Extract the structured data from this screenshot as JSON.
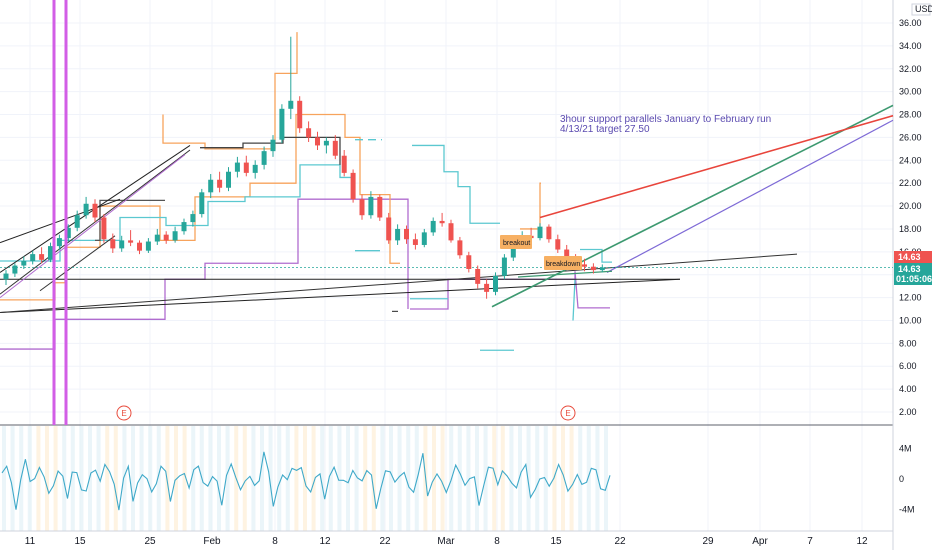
{
  "currency": "USD",
  "annotation": {
    "line1": "3hour support parallels January to February run",
    "line2": "4/13/21 target 27.50"
  },
  "labels": {
    "breakout": "breakout",
    "breakdown": "breakdown"
  },
  "earnings_marker": "E",
  "last_price": "14.63",
  "last_price_prev": "14.63",
  "countdown": "01:05:06",
  "colors": {
    "up": "#26a69a",
    "down": "#ef5350",
    "orange": "#f7a35c",
    "teal": "#5bc8d0",
    "purple": "#b06ccf",
    "magenta": "#d25ee6",
    "red_line": "#e8453c",
    "green_line": "#3d9970",
    "violet_line": "#7e6ad6",
    "volume": "#3fa9c9"
  },
  "chart_data": [
    {
      "type": "candlestick",
      "ylim": [
        1,
        38
      ],
      "y_ticks": [
        "36.00",
        "34.00",
        "32.00",
        "30.00",
        "28.00",
        "26.00",
        "24.00",
        "22.00",
        "20.00",
        "18.00",
        "16.00",
        "14.00",
        "12.00",
        "10.00",
        "8.00",
        "6.00",
        "4.00",
        "2.00"
      ],
      "x_ticks": [
        "11",
        "15",
        "25",
        "Feb",
        "8",
        "12",
        "22",
        "Mar",
        "8",
        "15",
        "22",
        "29",
        "Apr",
        "7",
        "12"
      ],
      "series": [
        {
          "note": "daily OHLC approx",
          "points": [
            [
              0,
              13.6,
              14.4,
              13.1,
              14.1
            ],
            [
              1,
              14.1,
              15.0,
              13.8,
              14.8
            ],
            [
              2,
              14.8,
              15.6,
              14.5,
              15.2
            ],
            [
              3,
              15.2,
              16.1,
              14.9,
              15.8
            ],
            [
              4,
              15.8,
              16.4,
              15.0,
              15.3
            ],
            [
              5,
              15.3,
              16.8,
              15.1,
              16.5
            ],
            [
              6,
              16.5,
              17.5,
              16.2,
              17.2
            ],
            [
              7,
              17.2,
              18.4,
              16.9,
              18.1
            ],
            [
              8,
              18.1,
              19.6,
              17.8,
              19.2
            ],
            [
              9,
              19.2,
              20.8,
              18.9,
              20.2
            ],
            [
              10,
              20.2,
              20.6,
              18.6,
              19.0
            ],
            [
              11,
              19.0,
              19.3,
              16.8,
              17.1
            ],
            [
              12,
              17.1,
              17.6,
              15.9,
              16.3
            ],
            [
              13,
              16.3,
              17.4,
              16.0,
              17.0
            ],
            [
              14,
              17.0,
              17.9,
              16.5,
              16.8
            ],
            [
              15,
              16.8,
              17.0,
              15.8,
              16.1
            ],
            [
              16,
              16.1,
              17.2,
              15.9,
              16.9
            ],
            [
              17,
              16.9,
              18.0,
              16.6,
              17.5
            ],
            [
              18,
              17.5,
              17.8,
              16.7,
              17.0
            ],
            [
              19,
              17.0,
              18.2,
              16.8,
              17.8
            ],
            [
              20,
              17.8,
              18.9,
              17.5,
              18.6
            ],
            [
              21,
              18.6,
              19.6,
              18.2,
              19.3
            ],
            [
              22,
              19.3,
              21.5,
              19.0,
              21.2
            ],
            [
              23,
              21.2,
              22.8,
              20.7,
              22.3
            ],
            [
              24,
              22.3,
              23.0,
              21.2,
              21.6
            ],
            [
              25,
              21.6,
              23.4,
              21.3,
              23.0
            ],
            [
              26,
              23.0,
              24.3,
              22.5,
              23.8
            ],
            [
              27,
              23.8,
              24.4,
              22.6,
              22.9
            ],
            [
              28,
              22.9,
              24.0,
              22.4,
              23.6
            ],
            [
              29,
              23.6,
              25.2,
              23.2,
              24.8
            ],
            [
              30,
              24.8,
              26.2,
              24.3,
              25.8
            ],
            [
              31,
              25.8,
              28.9,
              25.5,
              28.5
            ],
            [
              32,
              28.5,
              34.8,
              27.6,
              29.2
            ],
            [
              33,
              29.2,
              29.6,
              26.4,
              26.8
            ],
            [
              34,
              26.8,
              27.4,
              25.6,
              26.0
            ],
            [
              35,
              26.0,
              26.5,
              24.9,
              25.3
            ],
            [
              36,
              25.3,
              26.0,
              24.6,
              25.7
            ],
            [
              37,
              25.7,
              26.2,
              24.1,
              24.4
            ],
            [
              38,
              24.4,
              24.9,
              22.6,
              22.9
            ],
            [
              39,
              22.9,
              23.2,
              20.3,
              20.6
            ],
            [
              40,
              20.6,
              21.0,
              18.8,
              19.2
            ],
            [
              41,
              19.2,
              21.3,
              18.9,
              20.8
            ],
            [
              42,
              20.8,
              21.0,
              18.7,
              19.0
            ],
            [
              43,
              19.0,
              19.4,
              16.7,
              17.0
            ],
            [
              44,
              17.0,
              18.4,
              16.6,
              18.0
            ],
            [
              45,
              18.0,
              18.3,
              16.7,
              17.1
            ],
            [
              46,
              17.1,
              17.6,
              16.2,
              16.6
            ],
            [
              47,
              16.6,
              18.0,
              16.4,
              17.7
            ],
            [
              48,
              17.7,
              19.0,
              17.4,
              18.7
            ],
            [
              49,
              18.7,
              19.4,
              18.2,
              18.5
            ],
            [
              50,
              18.5,
              18.8,
              16.8,
              17.0
            ],
            [
              51,
              17.0,
              17.3,
              15.4,
              15.7
            ],
            [
              52,
              15.7,
              16.0,
              14.2,
              14.5
            ],
            [
              53,
              14.5,
              14.8,
              12.8,
              13.2
            ],
            [
              54,
              13.2,
              13.6,
              11.9,
              12.5
            ],
            [
              55,
              12.5,
              14.2,
              12.2,
              13.9
            ],
            [
              56,
              13.9,
              15.8,
              13.6,
              15.5
            ],
            [
              57,
              15.5,
              17.2,
              15.2,
              16.9
            ],
            [
              58,
              16.9,
              17.8,
              16.5,
              17.4
            ],
            [
              59,
              17.4,
              18.1,
              16.8,
              17.2
            ],
            [
              60,
              17.2,
              18.5,
              17.0,
              18.2
            ],
            [
              61,
              18.2,
              18.4,
              16.8,
              17.1
            ],
            [
              62,
              17.1,
              17.5,
              15.9,
              16.2
            ],
            [
              63,
              16.2,
              16.6,
              15.1,
              15.4
            ],
            [
              64,
              15.4,
              15.8,
              14.6,
              14.9
            ],
            [
              65,
              14.9,
              15.4,
              14.3,
              14.7
            ],
            [
              66,
              14.7,
              15.0,
              14.1,
              14.4
            ],
            [
              67,
              14.4,
              14.9,
              14.2,
              14.63
            ]
          ]
        }
      ]
    },
    {
      "type": "line",
      "title": "",
      "y_ticks": [
        "4M",
        "0",
        "-4M"
      ],
      "ylim": [
        -6,
        6
      ]
    }
  ]
}
